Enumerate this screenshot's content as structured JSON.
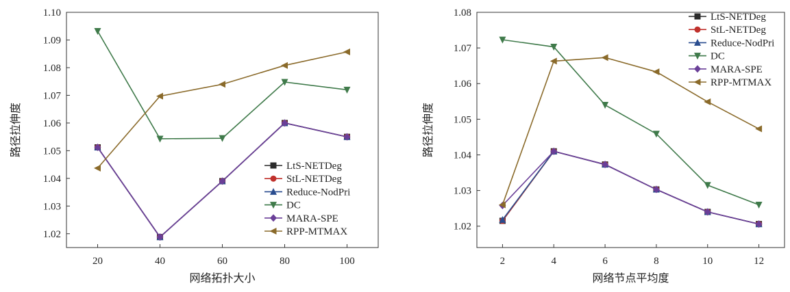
{
  "chart_data": [
    {
      "type": "line",
      "title": "",
      "xlabel": "网络拓扑大小",
      "ylabel": "路径拉伸度",
      "x": [
        20,
        40,
        60,
        80,
        100
      ],
      "xticks": [
        "20",
        "40",
        "60",
        "80",
        "100"
      ],
      "xlim": [
        10,
        110
      ],
      "ylim": [
        1.015,
        1.1
      ],
      "yticks": [
        "1.02",
        "1.03",
        "1.04",
        "1.05",
        "1.06",
        "1.07",
        "1.08",
        "1.09",
        "1.10"
      ],
      "yticks_values": [
        1.02,
        1.03,
        1.04,
        1.05,
        1.06,
        1.07,
        1.08,
        1.09,
        1.1
      ],
      "legend_position": "bottom-right",
      "grid": false,
      "series": [
        {
          "name": "LtS-NETDeg",
          "marker": "square",
          "color": "#2b2b2b",
          "values": [
            1.0512,
            1.0188,
            1.039,
            1.06,
            1.055
          ]
        },
        {
          "name": "StL-NETDeg",
          "marker": "circle",
          "color": "#c0312c",
          "values": [
            1.0512,
            1.0188,
            1.039,
            1.06,
            1.055
          ]
        },
        {
          "name": "Reduce-NodPri",
          "marker": "triangle-up",
          "color": "#2a4d8f",
          "values": [
            1.0512,
            1.0188,
            1.039,
            1.06,
            1.055
          ]
        },
        {
          "name": "DC",
          "marker": "triangle-down",
          "color": "#3f7a4a",
          "values": [
            1.0932,
            1.0543,
            1.0545,
            1.0748,
            1.072
          ]
        },
        {
          "name": "MARA-SPE",
          "marker": "diamond",
          "color": "#6a3f98",
          "values": [
            1.0512,
            1.0188,
            1.039,
            1.06,
            1.055
          ]
        },
        {
          "name": "RPP-MTMAX",
          "marker": "triangle-left",
          "color": "#8a6a2a",
          "values": [
            1.0437,
            1.0697,
            1.074,
            1.0808,
            1.0857
          ]
        }
      ]
    },
    {
      "type": "line",
      "title": "",
      "xlabel": "网络节点平均度",
      "ylabel": "路径拉伸度",
      "x": [
        2,
        4,
        6,
        8,
        10,
        12
      ],
      "xticks": [
        "2",
        "4",
        "6",
        "8",
        "10",
        "12"
      ],
      "xlim": [
        1,
        13
      ],
      "ylim": [
        1.014,
        1.08
      ],
      "yticks": [
        "1.02",
        "1.03",
        "1.04",
        "1.05",
        "1.06",
        "1.07",
        "1.08"
      ],
      "yticks_values": [
        1.02,
        1.03,
        1.04,
        1.05,
        1.06,
        1.07,
        1.08
      ],
      "legend_position": "top-right",
      "grid": false,
      "series": [
        {
          "name": "LtS-NETDeg",
          "marker": "square",
          "color": "#2b2b2b",
          "values": [
            1.0215,
            1.041,
            1.0373,
            1.0303,
            1.024,
            1.0206
          ]
        },
        {
          "name": "StL-NETDeg",
          "marker": "circle",
          "color": "#c0312c",
          "values": [
            1.0215,
            1.041,
            1.0373,
            1.0303,
            1.024,
            1.0206
          ]
        },
        {
          "name": "Reduce-NodPri",
          "marker": "triangle-up",
          "color": "#2a4d8f",
          "values": [
            1.0218,
            1.041,
            1.0373,
            1.0303,
            1.024,
            1.0206
          ]
        },
        {
          "name": "DC",
          "marker": "triangle-down",
          "color": "#3f7a4a",
          "values": [
            1.0723,
            1.0703,
            1.054,
            1.0459,
            1.0315,
            1.026
          ]
        },
        {
          "name": "MARA-SPE",
          "marker": "diamond",
          "color": "#6a3f98",
          "values": [
            1.0258,
            1.041,
            1.0373,
            1.0303,
            1.024,
            1.0206
          ]
        },
        {
          "name": "RPP-MTMAX",
          "marker": "triangle-left",
          "color": "#8a6a2a",
          "values": [
            1.026,
            1.0663,
            1.0673,
            1.0633,
            1.0549,
            1.0473
          ]
        }
      ]
    }
  ]
}
